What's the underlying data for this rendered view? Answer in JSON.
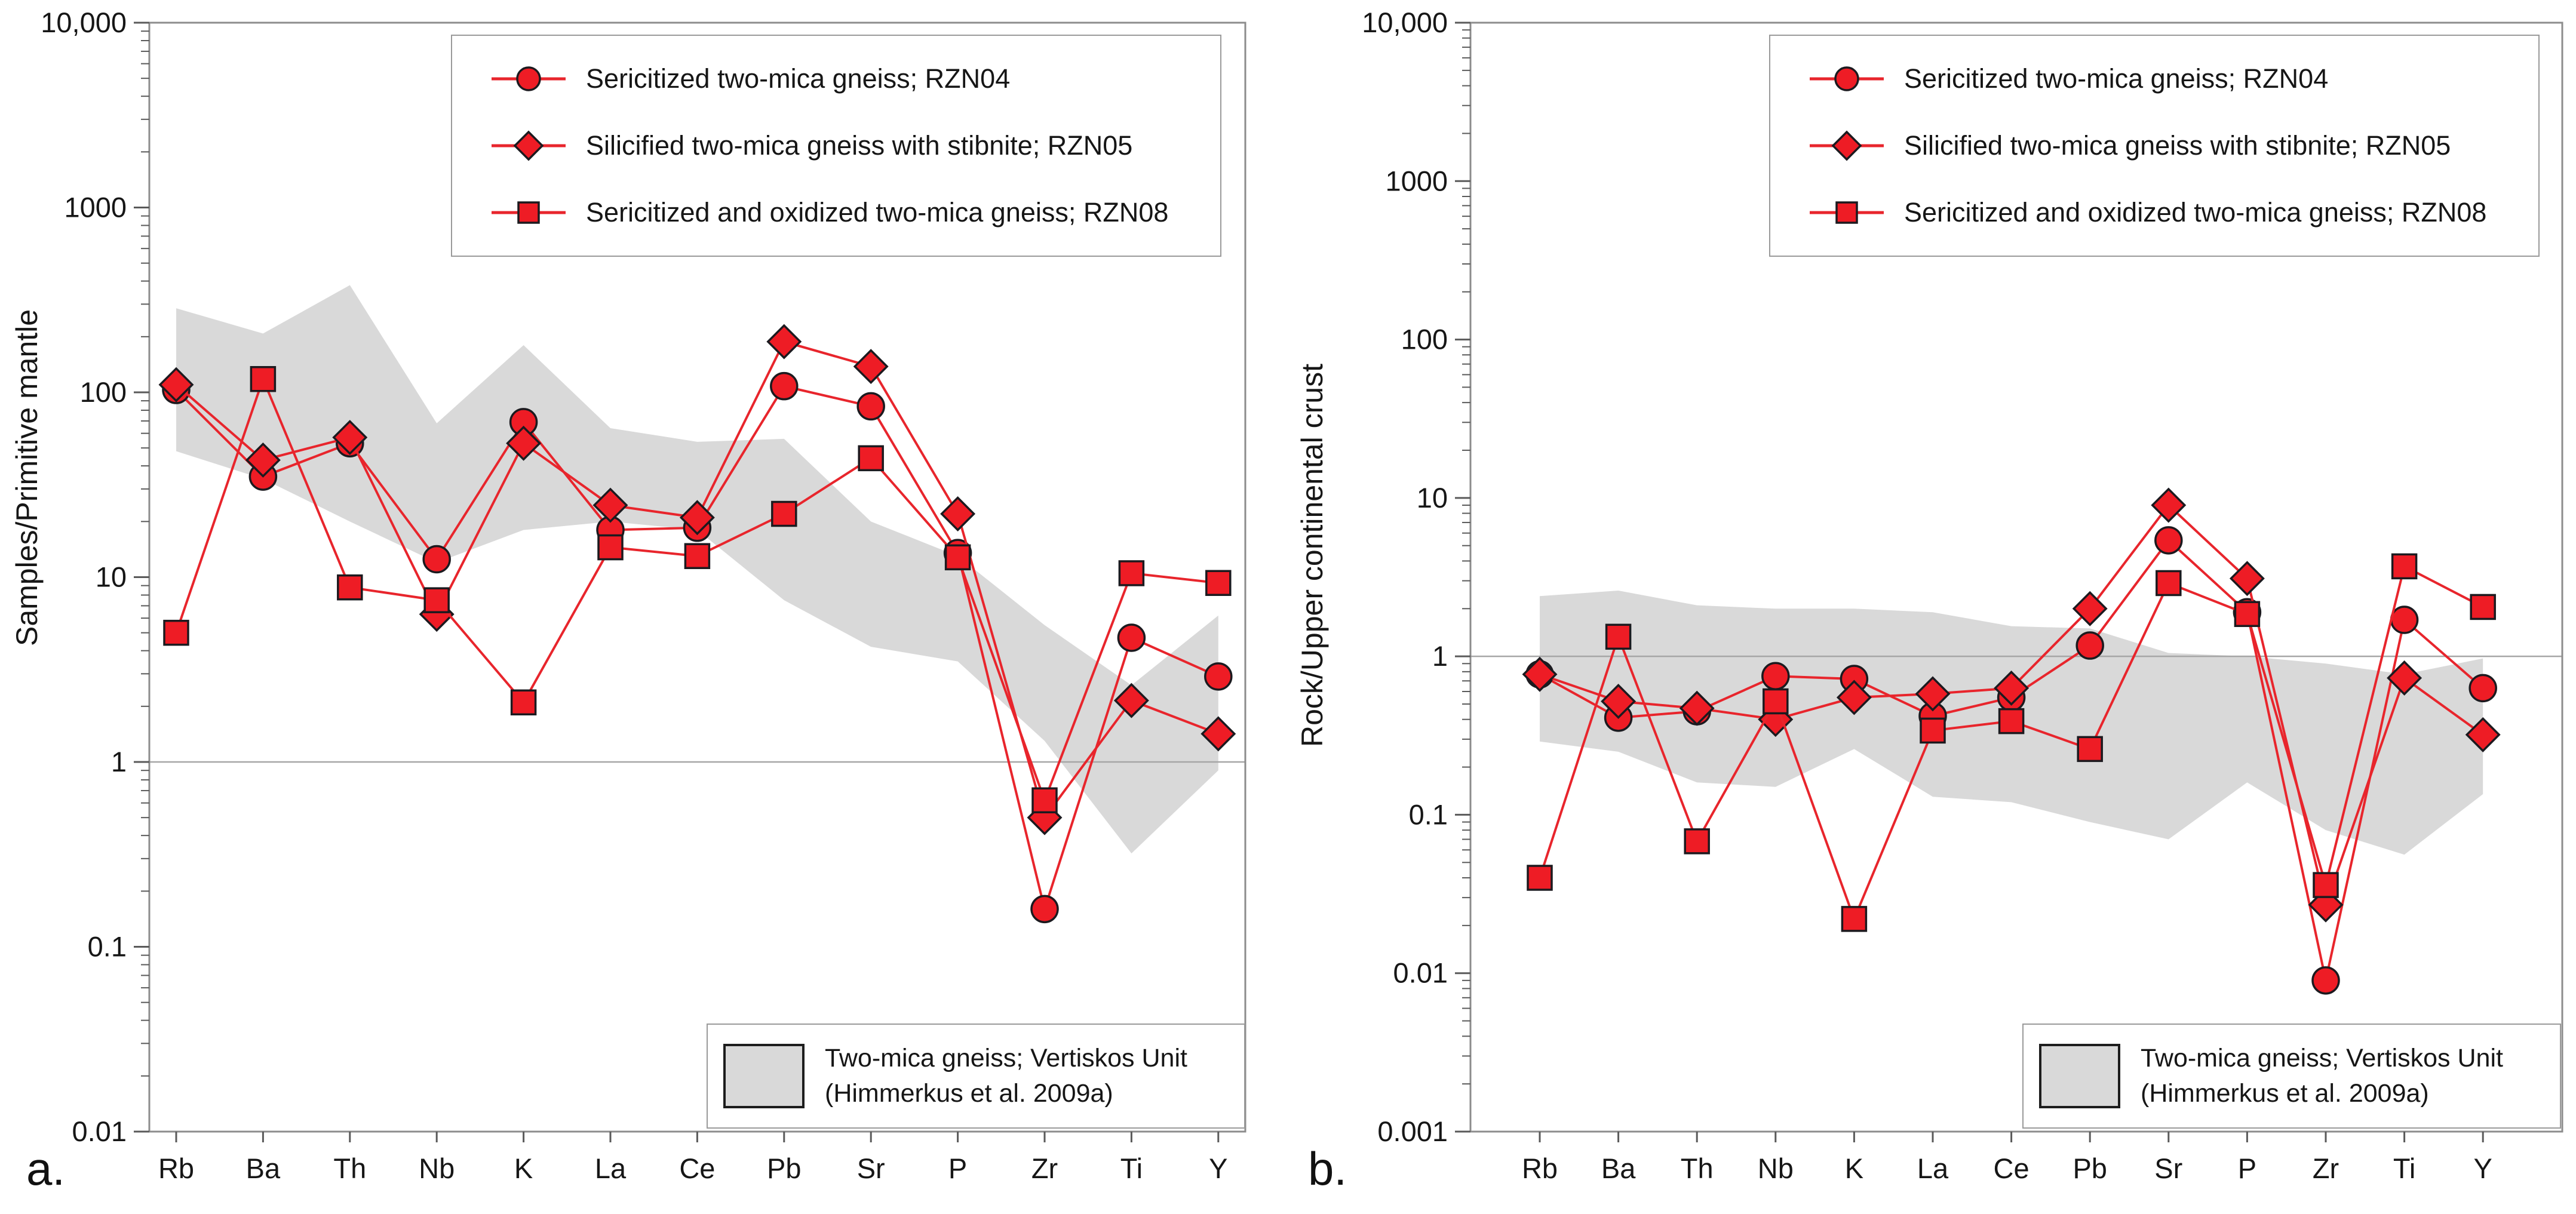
{
  "colors": {
    "marker_fill": "#ee1c25",
    "marker_stroke": "#1c1a1f",
    "line": "#e8252c",
    "band": "#d9d9d9",
    "grid": "#a6a6a6",
    "frame": "#8c8c8c",
    "tick": "#5a5a5a",
    "text": "#161616",
    "legend_border": "#9a9a9a",
    "background": "#ffffff"
  },
  "chart_data": [
    {
      "type": "line",
      "panel_label": "a.",
      "title": "",
      "xlabel": "",
      "ylabel": "Samples/Primitive mantle",
      "categories": [
        "Rb",
        "Ba",
        "Th",
        "Nb",
        "K",
        "La",
        "Ce",
        "Pb",
        "Sr",
        "P",
        "Zr",
        "Ti",
        "Y"
      ],
      "ylim": [
        0.01,
        10000
      ],
      "ytick_labels": [
        "10,000",
        "1000",
        "100",
        "10",
        "1",
        "0.1",
        "0.01"
      ],
      "gridline_at": 1,
      "grid": "y-at-1-only",
      "legend_position": "top-right-inside",
      "series": [
        {
          "name": "Sericitized two-mica gneiss; RZN04",
          "marker": "circle",
          "values": [
            103,
            35,
            53,
            12.5,
            69,
            18,
            18.5,
            108,
            84,
            13.5,
            0.16,
            4.7,
            2.9
          ]
        },
        {
          "name": "Silicified two-mica gneiss with stibnite; RZN05",
          "marker": "diamond",
          "values": [
            110,
            43,
            57,
            6.3,
            53,
            24.5,
            21,
            188,
            138,
            22,
            0.5,
            2.15,
            1.42
          ]
        },
        {
          "name": "Sericitized and oxidized two-mica gneiss; RZN08",
          "marker": "square",
          "values": [
            5.0,
            118,
            8.8,
            7.5,
            2.1,
            14.5,
            13,
            22,
            44,
            12.8,
            0.62,
            10.5,
            9.3
          ]
        }
      ],
      "band": {
        "name": "Two-mica gneiss; Vertiskos Unit",
        "name_line2": "(Himmerkus et al. 2009a)",
        "high": [
          285,
          208,
          380,
          68,
          180,
          64,
          54,
          56,
          20,
          13,
          5.5,
          2.6,
          6.2
        ],
        "low": [
          48,
          34,
          20,
          12,
          18,
          20,
          18,
          7.5,
          4.2,
          3.5,
          1.3,
          0.32,
          0.9
        ]
      }
    },
    {
      "type": "line",
      "panel_label": "b.",
      "title": "",
      "xlabel": "",
      "ylabel": "Rock/Upper continental crust",
      "categories": [
        "Rb",
        "Ba",
        "Th",
        "Nb",
        "K",
        "La",
        "Ce",
        "Pb",
        "Sr",
        "P",
        "Zr",
        "Ti",
        "Y"
      ],
      "ylim": [
        0.001,
        10000
      ],
      "ytick_labels": [
        "10,000",
        "1000",
        "100",
        "10",
        "1",
        "0.1",
        "0.01",
        "0.001"
      ],
      "gridline_at": 1,
      "grid": "y-at-1-only",
      "legend_position": "top-right-inside",
      "series": [
        {
          "name": "Sericitized two-mica gneiss; RZN04",
          "marker": "circle",
          "values": [
            0.77,
            0.41,
            0.45,
            0.75,
            0.72,
            0.42,
            0.55,
            1.17,
            5.4,
            1.9,
            0.009,
            1.7,
            0.63
          ]
        },
        {
          "name": "Silicified two-mica gneiss with stibnite; RZN05",
          "marker": "diamond",
          "values": [
            0.77,
            0.52,
            0.47,
            0.4,
            0.55,
            0.58,
            0.63,
            2.0,
            9.0,
            3.1,
            0.027,
            0.73,
            0.32
          ]
        },
        {
          "name": "Sericitized and oxidized two-mica gneiss; RZN08",
          "marker": "square",
          "values": [
            0.04,
            1.33,
            0.068,
            0.52,
            0.022,
            0.34,
            0.39,
            0.26,
            2.9,
            1.85,
            0.036,
            3.7,
            2.05
          ]
        }
      ],
      "band": {
        "name": "Two-mica gneiss; Vertiskos Unit",
        "name_line2": "(Himmerkus et al. 2009a)",
        "high": [
          2.4,
          2.6,
          2.1,
          2.0,
          2.0,
          1.9,
          1.55,
          1.5,
          1.05,
          1.0,
          0.9,
          0.77,
          0.97
        ],
        "low": [
          0.29,
          0.25,
          0.16,
          0.15,
          0.26,
          0.13,
          0.12,
          0.09,
          0.07,
          0.16,
          0.08,
          0.056,
          0.135
        ]
      }
    }
  ]
}
